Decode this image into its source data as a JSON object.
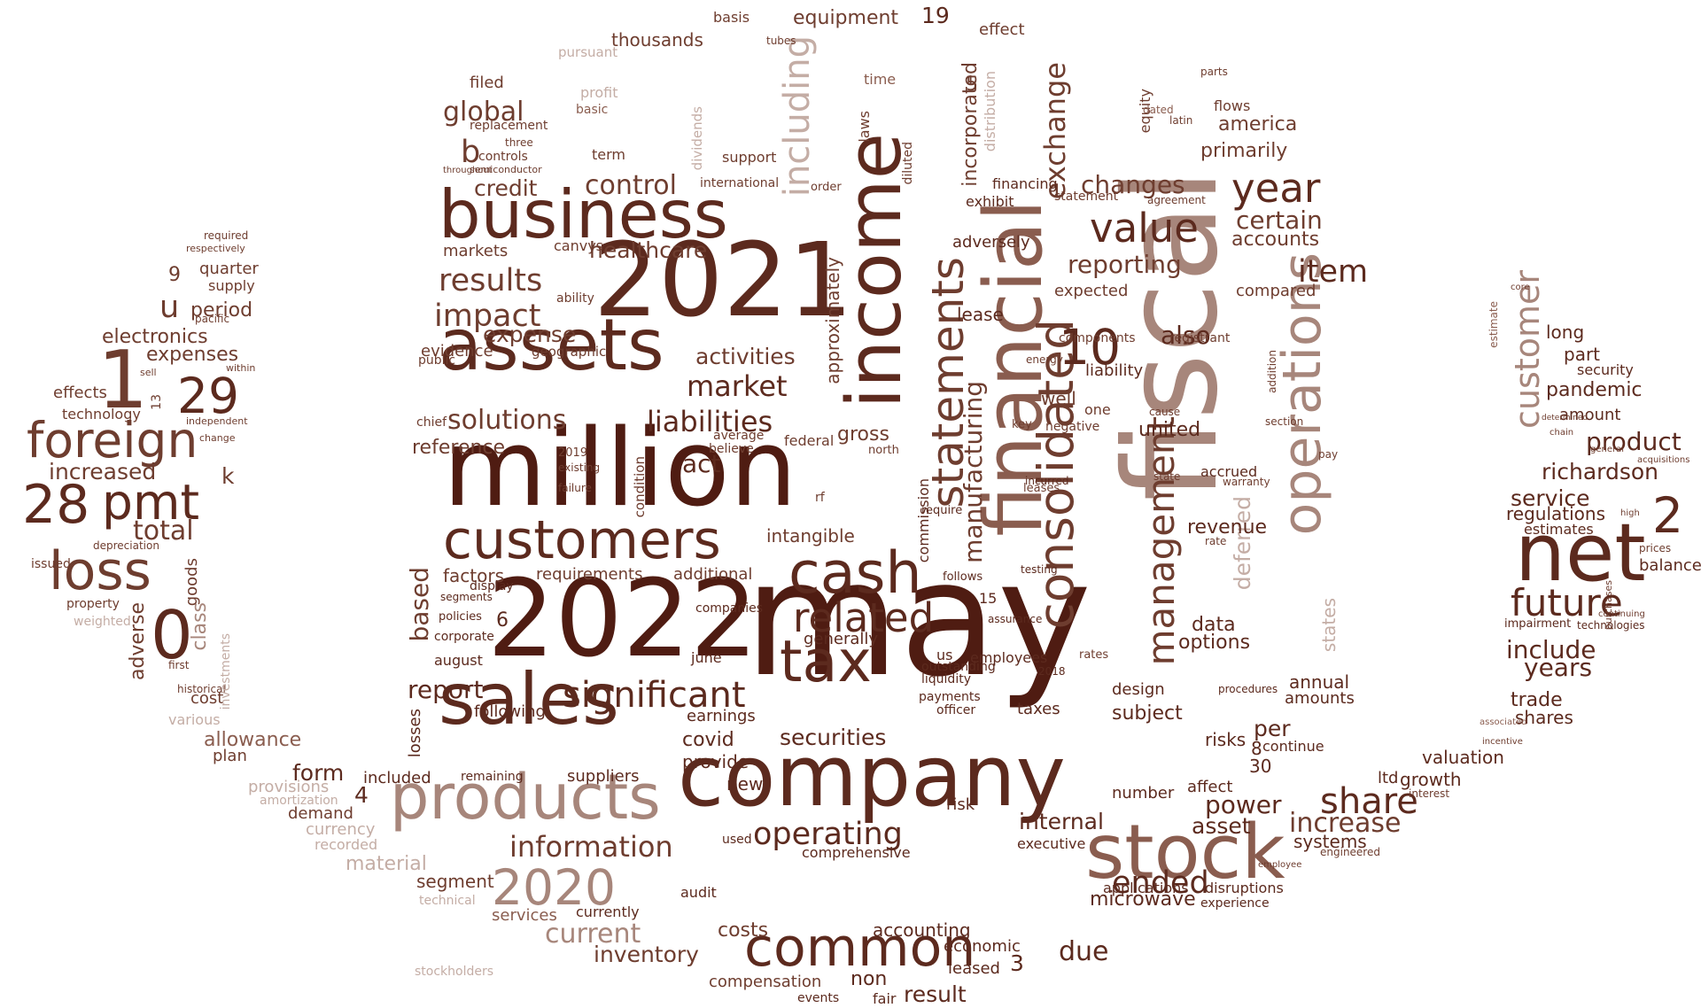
{
  "colors": {
    "darkest": "#4f1c12",
    "dark": "#5c2a1e",
    "medium_dark": "#6e3d2f",
    "medium": "#8a5d4f",
    "light": "#a7867b",
    "lighter": "#c4ada5",
    "faint": "#d8c8c2"
  },
  "words": {
    "may": "may",
    "fiscal": "fiscal",
    "million": "million",
    "n2022": "2022",
    "n2021": "2021",
    "company": "company",
    "financial": "financial",
    "income": "income",
    "assets": "assets",
    "business": "business",
    "sales": "sales",
    "customers": "customers",
    "products": "products",
    "stock": "stock",
    "common": "common",
    "net": "net",
    "tax": "tax",
    "cash": "cash",
    "operations": "operations",
    "consolidated": "consolidated",
    "statements": "statements",
    "foreign": "foreign",
    "loss": "loss",
    "pmt": "pmt",
    "n28": "28",
    "n29": "29",
    "n1": "1",
    "n0": "0",
    "n2": "2",
    "n10": "10",
    "n2020": "2020",
    "related": "related",
    "significant": "significant",
    "information": "information",
    "operating": "operating",
    "value": "value",
    "year": "year",
    "future": "future",
    "share": "share",
    "management": "management",
    "customer": "customer",
    "including": "including",
    "results": "results",
    "impact": "impact",
    "market": "market",
    "liabilities": "liabilities",
    "solutions": "solutions",
    "global": "global",
    "control": "control",
    "item": "item",
    "reporting": "reporting",
    "certain": "certain",
    "changes": "changes",
    "manufacturing": "manufacturing",
    "exchange": "exchange",
    "richardson": "richardson",
    "service": "service",
    "product": "product",
    "include": "include",
    "years": "years",
    "pandemic": "pandemic",
    "ended": "ended",
    "current": "current",
    "inventory": "inventory",
    "material": "material",
    "costs": "costs",
    "due": "due",
    "result": "result",
    "power": "power",
    "increase": "increase",
    "asset": "asset",
    "internal": "internal",
    "report": "report",
    "securities": "securities",
    "activities": "activities",
    "healthcare": "healthcare",
    "credit": "credit",
    "expense": "expense",
    "reference": "reference",
    "total": "total",
    "increased": "increased",
    "expenses": "expenses",
    "period": "period",
    "electronics": "electronics",
    "allowance": "allowance",
    "form": "form",
    "based": "based",
    "adverse": "adverse",
    "deferred": "deferred",
    "states": "states",
    "united": "united",
    "revenue": "revenue",
    "data": "data",
    "options": "options",
    "subject": "subject",
    "risks": "risks",
    "per": "per",
    "annual": "annual",
    "amounts": "amounts",
    "design": "design",
    "microwave": "microwave",
    "systems": "systems",
    "trade": "trade",
    "shares": "shares",
    "valuation": "valuation",
    "growth": "growth",
    "balance": "balance",
    "estimates": "estimates",
    "regulations": "regulations",
    "amount": "amount",
    "security": "security",
    "part": "part",
    "long": "long",
    "america": "america",
    "primarily": "primarily",
    "accounts": "accounts",
    "compared": "compared",
    "expected": "expected",
    "lease": "lease",
    "also": "also",
    "incorporated": "incorporated",
    "equipment": "equipment",
    "thousands": "thousands",
    "filed": "filed",
    "effect": "effect",
    "approximately": "approximately",
    "gross": "gross",
    "intangible": "intangible",
    "additional": "additional",
    "factors": "factors",
    "requirements": "requirements",
    "covid": "covid",
    "earnings": "earnings",
    "provide": "provide",
    "new": "new",
    "following": "following",
    "suppliers": "suppliers",
    "included": "included",
    "losses": "losses",
    "accounting": "accounting",
    "comprehensive": "comprehensive",
    "economic": "economic",
    "compensation": "compensation",
    "leased": "leased",
    "non": "non",
    "segment": "segment",
    "services": "services",
    "demand": "demand",
    "currency": "currency",
    "recorded": "recorded",
    "provisions": "provisions",
    "plan": "plan",
    "cost": "cost",
    "class": "class",
    "goods": "goods",
    "effects": "effects",
    "technology": "technology",
    "quarter": "quarter",
    "supply": "supply",
    "adversely": "adversely",
    "commission": "commission",
    "financing": "financing",
    "exhibit": "exhibit",
    "markets": "markets",
    "canvys": "canvys",
    "evidence": "evidence",
    "geographic": "geographic",
    "public": "public",
    "ability": "ability",
    "generally": "generally",
    "us": "us",
    "executive": "executive",
    "employees": "employees",
    "liquidity": "liquidity",
    "taxes": "taxes",
    "payments": "payments",
    "officer": "officer",
    "risk": "risk",
    "well": "well",
    "liability": "liability",
    "components": "components",
    "accrued": "accrued",
    "continue": "continue",
    "ltd": "ltd",
    "affect": "affect",
    "number": "number",
    "applications": "applications",
    "disruptions": "disruptions",
    "experience": "experience",
    "currently": "currently",
    "audit": "audit",
    "fair": "fair",
    "events": "events",
    "used": "used",
    "stockholders": "stockholders",
    "technical": "technical",
    "various": "various",
    "amortization": "amortization",
    "weighted": "weighted",
    "property": "property",
    "issued": "issued",
    "depreciation": "depreciation",
    "historical": "historical",
    "first": "first",
    "investments": "investments",
    "remaining": "remaining",
    "june": "june",
    "companies": "companies",
    "august": "august",
    "corporate": "corporate",
    "policies": "policies",
    "segments": "segments",
    "display": "display",
    "b": "b",
    "k": "k",
    "u": "u",
    "n19": "19",
    "n5": "5",
    "n4": "4",
    "n3": "3",
    "n6": "6",
    "n8": "8",
    "n9": "9",
    "n15": "15",
    "n30": "30",
    "n13": "13",
    "act": "act",
    "condition": "condition",
    "dividends": "dividends",
    "time": "time",
    "basis": "basis",
    "tubes": "tubes",
    "laws": "laws",
    "equity": "equity",
    "flows": "flows",
    "parts": "parts",
    "latin": "latin",
    "dated": "dated",
    "support": "support",
    "term": "term",
    "basic": "basic",
    "profit": "profit",
    "pursuant": "pursuant",
    "three": "three",
    "controls": "controls",
    "replacement": "replacement",
    "international": "international",
    "order": "order",
    "diluted": "diluted",
    "statement": "statement",
    "agreement": "agreement",
    "registrant": "registrant",
    "addition": "addition",
    "section": "section",
    "negative": "negative",
    "one": "one",
    "cause": "cause",
    "state": "state",
    "rate": "rate",
    "warranty": "warranty",
    "pay": "pay",
    "chief": "chief",
    "average": "average",
    "believe": "believe",
    "federal": "federal",
    "north": "north",
    "failure": "failure",
    "existing": "existing",
    "n2019": "2019",
    "rf": "rf",
    "procedures": "procedures",
    "impairment": "impairment",
    "technologies": "technologies",
    "prices": "prices",
    "rates": "rates",
    "distribution": "distribution",
    "incurred": "incurred",
    "testing": "testing",
    "leases": "leases",
    "assurance": "assurance",
    "n2018": "2018",
    "require": "require",
    "follows": "follows",
    "outstanding": "outstanding",
    "energy": "energy",
    "key": "key",
    "within": "within",
    "sell": "sell",
    "independent": "independent",
    "required": "required",
    "respectively": "respectively",
    "pacific": "pacific",
    "change": "change",
    "semiconductor": "semiconductor",
    "throughout": "throughout",
    "interest": "interest",
    "engineered": "engineered",
    "employee": "employee",
    "interest2": "estimate",
    "incentive": "incentive",
    "associated": "associated",
    "purchases": "purchases",
    "continuing": "continuing",
    "general": "general",
    "acquisitions": "acquisitions",
    "high": "high",
    "chain": "chain",
    "determined": "determined",
    "core": "core"
  }
}
